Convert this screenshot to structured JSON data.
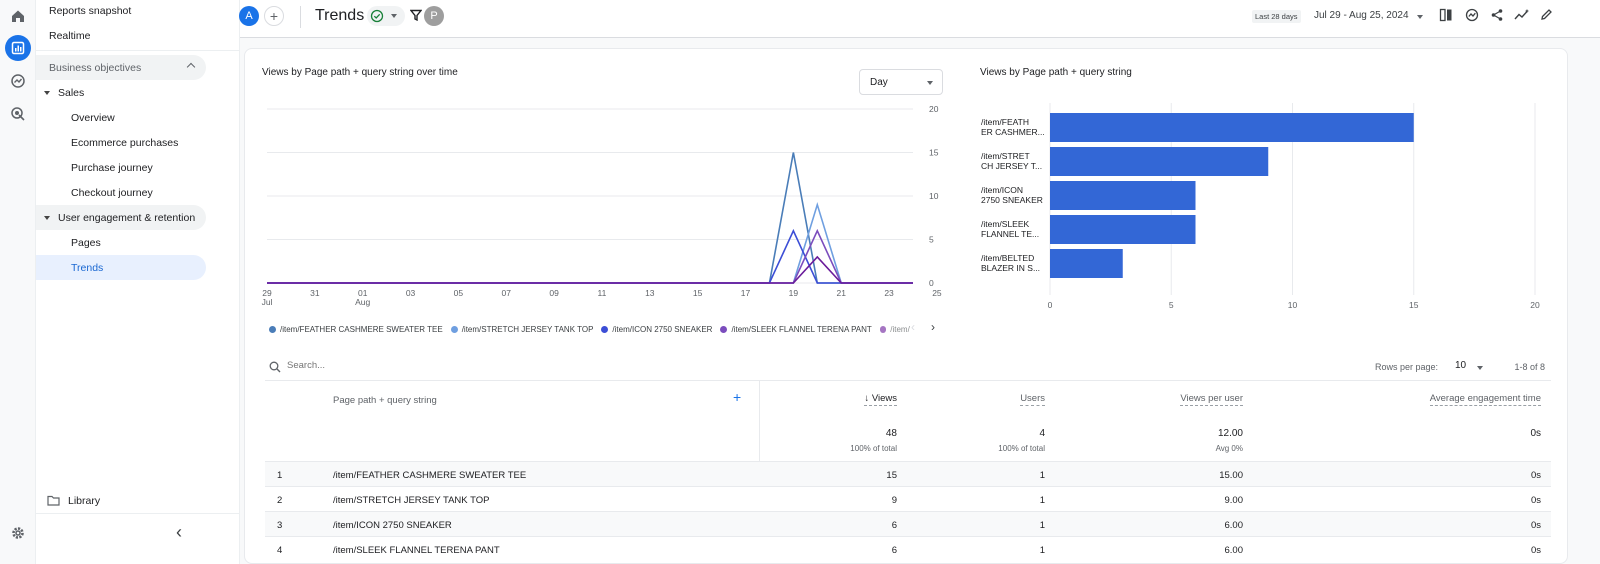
{
  "rail": {
    "icons": [
      "home-icon",
      "reports-icon",
      "explore-icon",
      "advertising-icon",
      "settings-icon"
    ]
  },
  "nav": {
    "reports_snapshot": "Reports snapshot",
    "realtime": "Realtime",
    "business_objectives": "Business objectives",
    "sales": "Sales",
    "sales_items": [
      "Overview",
      "Ecommerce purchases",
      "Purchase journey",
      "Checkout journey"
    ],
    "engagement": "User engagement & retention",
    "engagement_items": [
      "Pages",
      "Trends"
    ],
    "library": "Library",
    "collapse": "‹"
  },
  "topbar": {
    "avatar_letter": "A",
    "add": "+",
    "title": "Trends",
    "filter_avatar": "P",
    "date_badge": "Last 28 days",
    "date_range": "Jul 29 - Aug 25, 2024"
  },
  "line_chart": {
    "title": "Views by Page path + query string over time",
    "granularity": "Day",
    "y_ticks": [
      "20",
      "15",
      "10",
      "5",
      "0"
    ],
    "x_ticks": [
      {
        "d": "29",
        "m": "Jul"
      },
      {
        "d": "31",
        "m": ""
      },
      {
        "d": "01",
        "m": "Aug"
      },
      {
        "d": "03",
        "m": ""
      },
      {
        "d": "05",
        "m": ""
      },
      {
        "d": "07",
        "m": ""
      },
      {
        "d": "09",
        "m": ""
      },
      {
        "d": "11",
        "m": ""
      },
      {
        "d": "13",
        "m": ""
      },
      {
        "d": "15",
        "m": ""
      },
      {
        "d": "17",
        "m": ""
      },
      {
        "d": "19",
        "m": ""
      },
      {
        "d": "21",
        "m": ""
      },
      {
        "d": "23",
        "m": ""
      },
      {
        "d": "25",
        "m": ""
      }
    ],
    "legend": [
      {
        "name": "/item/FEATHER CASHMERE SWEATER TEE",
        "color": "#4a7db8"
      },
      {
        "name": "/item/STRETCH JERSEY TANK TOP",
        "color": "#6f9fe0"
      },
      {
        "name": "/item/ICON 2750 SNEAKER",
        "color": "#3c4ed6"
      },
      {
        "name": "/item/SLEEK FLANNEL TERENA PANT",
        "color": "#7b4dbd"
      },
      {
        "name": "/item/",
        "color": "#6a1b9a"
      }
    ]
  },
  "chart_data": [
    {
      "type": "line",
      "title": "Views by Page path + query string over time",
      "x": [
        "Jul 29",
        "Jul 30",
        "Jul 31",
        "Aug 01",
        "Aug 02",
        "Aug 03",
        "Aug 04",
        "Aug 05",
        "Aug 06",
        "Aug 07",
        "Aug 08",
        "Aug 09",
        "Aug 10",
        "Aug 11",
        "Aug 12",
        "Aug 13",
        "Aug 14",
        "Aug 15",
        "Aug 16",
        "Aug 17",
        "Aug 18",
        "Aug 19",
        "Aug 20",
        "Aug 21",
        "Aug 22",
        "Aug 23",
        "Aug 24",
        "Aug 25"
      ],
      "ylim": [
        0,
        20
      ],
      "series": [
        {
          "name": "/item/FEATHER CASHMERE SWEATER TEE",
          "color": "#4a7db8",
          "values": [
            0,
            0,
            0,
            0,
            0,
            0,
            0,
            0,
            0,
            0,
            0,
            0,
            0,
            0,
            0,
            0,
            0,
            0,
            0,
            0,
            0,
            0,
            15,
            0,
            0,
            0,
            0,
            0
          ]
        },
        {
          "name": "/item/STRETCH JERSEY TANK TOP",
          "color": "#6f9fe0",
          "values": [
            0,
            0,
            0,
            0,
            0,
            0,
            0,
            0,
            0,
            0,
            0,
            0,
            0,
            0,
            0,
            0,
            0,
            0,
            0,
            0,
            0,
            0,
            0,
            9,
            0,
            0,
            0,
            0
          ]
        },
        {
          "name": "/item/ICON 2750 SNEAKER",
          "color": "#3c4ed6",
          "values": [
            0,
            0,
            0,
            0,
            0,
            0,
            0,
            0,
            0,
            0,
            0,
            0,
            0,
            0,
            0,
            0,
            0,
            0,
            0,
            0,
            0,
            0,
            6,
            0,
            0,
            0,
            0,
            0
          ]
        },
        {
          "name": "/item/SLEEK FLANNEL TERENA PANT",
          "color": "#7b4dbd",
          "values": [
            0,
            0,
            0,
            0,
            0,
            0,
            0,
            0,
            0,
            0,
            0,
            0,
            0,
            0,
            0,
            0,
            0,
            0,
            0,
            0,
            0,
            0,
            0,
            6,
            0,
            0,
            0,
            0
          ]
        },
        {
          "values": [
            0,
            0,
            0,
            0,
            0,
            0,
            0,
            0,
            0,
            0,
            0,
            0,
            0,
            0,
            0,
            0,
            0,
            0,
            0,
            0,
            0,
            0,
            0,
            3,
            0,
            0,
            0,
            0
          ],
          "color": "#6a1b9a"
        }
      ],
      "grid": true
    },
    {
      "type": "bar",
      "orientation": "horizontal",
      "title": "Views by Page path + query string",
      "categories": [
        "/item/FEATH ER CASHMER...",
        "/item/STRET CH JERSEY T...",
        "/item/ICON 2750 SNEAKER",
        "/item/SLEEK FLANNEL TE...",
        "/item/BELTED BLAZER IN S..."
      ],
      "labels_lines": [
        [
          "/item/FEATH",
          "ER CASHMER..."
        ],
        [
          "/item/STRET",
          "CH JERSEY T..."
        ],
        [
          "/item/ICON",
          "2750 SNEAKER"
        ],
        [
          "/item/SLEEK",
          "FLANNEL TE..."
        ],
        [
          "/item/BELTED",
          "BLAZER IN S..."
        ]
      ],
      "values": [
        15,
        9,
        6,
        6,
        3
      ],
      "xlim": [
        0,
        20
      ],
      "x_ticks": [
        "0",
        "5",
        "10",
        "15",
        "20"
      ],
      "color": "#3367d6"
    }
  ],
  "table": {
    "search_placeholder": "Search...",
    "rows_per_page_label": "Rows per page:",
    "rows_per_page": "10",
    "pagination": "1-8 of 8",
    "headers": {
      "dimension": "Page path + query string",
      "views": "↓ Views",
      "users": "Users",
      "views_per_user": "Views per user",
      "avg_engagement": "Average engagement time"
    },
    "totals": {
      "views": "48",
      "views_sub": "100% of total",
      "users": "4",
      "users_sub": "100% of total",
      "views_per_user": "12.00",
      "vpu_sub": "Avg 0%",
      "avg_engagement": "0s"
    },
    "rows": [
      {
        "n": "1",
        "path": "/item/FEATHER CASHMERE SWEATER TEE",
        "views": "15",
        "users": "1",
        "vpu": "15.00",
        "aet": "0s"
      },
      {
        "n": "2",
        "path": "/item/STRETCH JERSEY TANK TOP",
        "views": "9",
        "users": "1",
        "vpu": "9.00",
        "aet": "0s"
      },
      {
        "n": "3",
        "path": "/item/ICON 2750 SNEAKER",
        "views": "6",
        "users": "1",
        "vpu": "6.00",
        "aet": "0s"
      },
      {
        "n": "4",
        "path": "/item/SLEEK FLANNEL TERENA PANT",
        "views": "6",
        "users": "1",
        "vpu": "6.00",
        "aet": "0s"
      }
    ]
  }
}
